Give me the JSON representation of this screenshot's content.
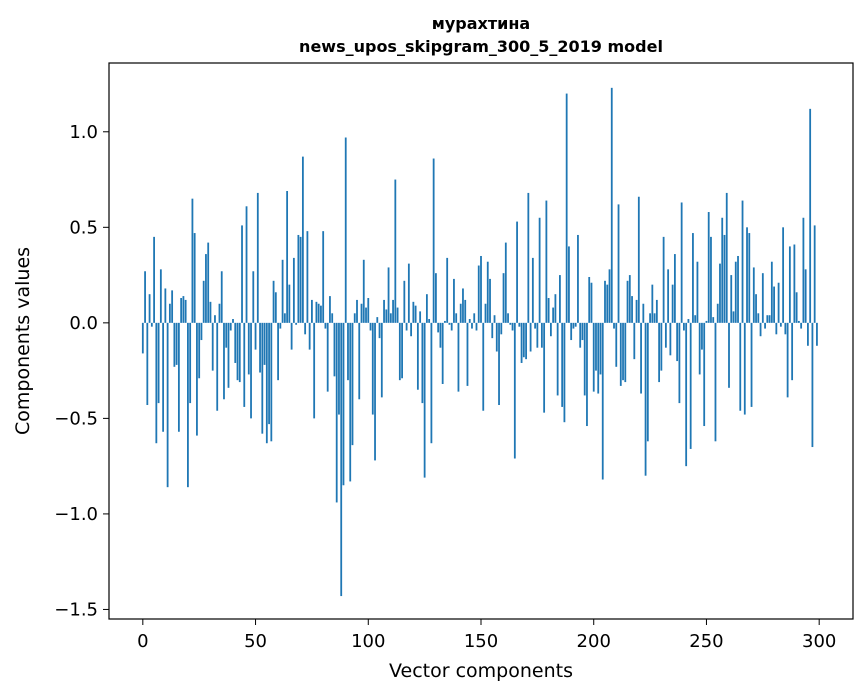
{
  "chart_data": {
    "type": "bar",
    "title": "мурахтина",
    "subtitle": "news_upos_skipgram_300_5_2019 model",
    "xlabel": "Vector components",
    "ylabel": "Components values",
    "xlim": [
      -15,
      315
    ],
    "ylim": [
      -1.55,
      1.36
    ],
    "xticks": [
      0,
      50,
      100,
      150,
      200,
      250,
      300
    ],
    "yticks": [
      -1.5,
      -1.0,
      -0.5,
      0.0,
      0.5,
      1.0
    ],
    "ytick_labels": [
      "−1.5",
      "−1.0",
      "−0.5",
      "0.0",
      "0.5",
      "1.0"
    ],
    "bar_color": "#1f77b4",
    "values": [
      -0.16,
      0.27,
      -0.43,
      0.15,
      -0.02,
      0.45,
      -0.63,
      -0.42,
      0.28,
      -0.57,
      0.18,
      -0.86,
      0.1,
      0.17,
      -0.23,
      -0.22,
      -0.57,
      0.13,
      0.14,
      0.12,
      -0.86,
      -0.42,
      0.65,
      0.47,
      -0.59,
      -0.29,
      -0.09,
      0.22,
      0.36,
      0.42,
      0.11,
      -0.25,
      0.04,
      -0.46,
      0.1,
      0.27,
      -0.4,
      -0.13,
      -0.34,
      -0.04,
      0.02,
      -0.21,
      -0.3,
      -0.31,
      0.51,
      -0.44,
      0.61,
      -0.27,
      -0.5,
      0.27,
      -0.14,
      0.68,
      -0.26,
      -0.58,
      -0.22,
      -0.63,
      -0.53,
      -0.62,
      0.22,
      0.16,
      -0.3,
      -0.03,
      0.33,
      0.05,
      0.69,
      0.2,
      -0.14,
      0.34,
      -0.01,
      0.46,
      0.45,
      0.87,
      -0.06,
      0.48,
      -0.14,
      0.12,
      -0.5,
      0.11,
      0.1,
      0.09,
      0.48,
      -0.03,
      -0.36,
      0.14,
      0.05,
      -0.28,
      -0.94,
      -0.48,
      -1.43,
      -0.85,
      0.97,
      -0.3,
      -0.83,
      -0.64,
      0.05,
      0.12,
      -0.4,
      0.1,
      0.33,
      0.08,
      0.13,
      -0.04,
      -0.48,
      -0.72,
      0.03,
      -0.08,
      -0.39,
      0.12,
      0.07,
      0.29,
      0.05,
      0.12,
      0.75,
      0.08,
      -0.3,
      -0.29,
      0.22,
      -0.04,
      0.31,
      -0.07,
      0.11,
      0.09,
      -0.35,
      0.06,
      -0.42,
      -0.81,
      0.15,
      0.02,
      -0.63,
      0.86,
      0.26,
      -0.05,
      -0.13,
      -0.32,
      0.01,
      0.34,
      -0.01,
      -0.04,
      0.23,
      0.05,
      -0.36,
      0.1,
      0.18,
      0.12,
      -0.33,
      0.02,
      -0.03,
      0.05,
      -0.04,
      0.3,
      0.35,
      -0.46,
      0.1,
      0.32,
      0.23,
      -0.08,
      0.04,
      -0.15,
      -0.43,
      -0.06,
      0.26,
      0.42,
      0.05,
      -0.01,
      -0.04,
      -0.71,
      0.53,
      -0.02,
      -0.21,
      -0.18,
      -0.19,
      0.68,
      -0.15,
      0.34,
      -0.03,
      -0.13,
      0.55,
      -0.13,
      -0.47,
      0.64,
      0.13,
      -0.07,
      0.08,
      0.15,
      -0.38,
      0.25,
      -0.44,
      -0.52,
      1.2,
      0.4,
      -0.09,
      -0.03,
      -0.02,
      0.46,
      -0.13,
      -0.09,
      -0.38,
      -0.54,
      0.24,
      0.21,
      -0.36,
      -0.25,
      -0.37,
      -0.27,
      -0.82,
      0.22,
      0.2,
      0.28,
      1.23,
      -0.03,
      -0.23,
      0.62,
      -0.33,
      -0.3,
      -0.31,
      0.22,
      0.25,
      0.14,
      -0.19,
      0.12,
      0.66,
      -0.37,
      0.1,
      -0.8,
      -0.62,
      0.05,
      0.2,
      0.05,
      0.12,
      -0.31,
      -0.25,
      0.45,
      -0.13,
      0.28,
      -0.17,
      0.2,
      0.36,
      -0.2,
      -0.42,
      0.63,
      -0.04,
      -0.75,
      0.02,
      -0.66,
      0.47,
      0.04,
      0.32,
      -0.27,
      -0.14,
      -0.54,
      0.01,
      0.58,
      0.45,
      0.03,
      -0.62,
      0.1,
      0.31,
      0.55,
      0.46,
      0.68,
      -0.34,
      0.25,
      0.06,
      0.32,
      0.35,
      -0.46,
      0.64,
      -0.48,
      0.5,
      0.47,
      -0.44,
      0.29,
      0.15,
      0.05,
      -0.07,
      0.26,
      -0.03,
      0.04,
      0.04,
      0.32,
      0.19,
      -0.06,
      0.21,
      -0.02,
      0.5,
      -0.06,
      -0.39,
      0.4,
      -0.3,
      0.41,
      0.16,
      0.01,
      -0.03,
      0.55,
      0.28,
      -0.12,
      1.12,
      -0.65,
      0.51,
      -0.12
    ]
  }
}
